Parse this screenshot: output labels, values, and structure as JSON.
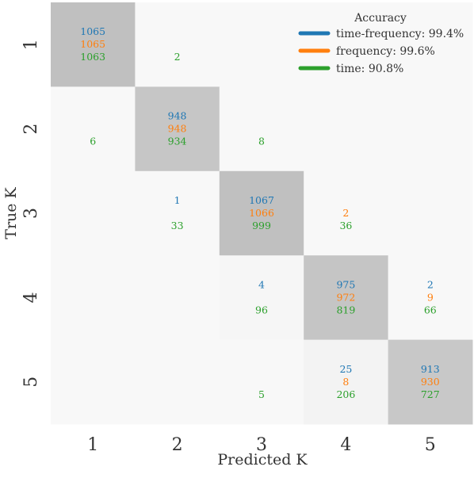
{
  "chart_data": {
    "type": "heatmap",
    "subtype": "confusion-matrix",
    "xlabel": "Predicted K",
    "ylabel": "True K",
    "x_categories": [
      "1",
      "2",
      "3",
      "4",
      "5"
    ],
    "y_categories": [
      "1",
      "2",
      "3",
      "4",
      "5"
    ],
    "series": [
      {
        "name": "time-frequency",
        "legend_label": "time-frequency: 99.4%",
        "color": "#1f77b4",
        "matrix": [
          [
            1065,
            null,
            null,
            null,
            null
          ],
          [
            null,
            948,
            null,
            null,
            null
          ],
          [
            null,
            1,
            1067,
            null,
            null
          ],
          [
            null,
            null,
            4,
            975,
            2
          ],
          [
            null,
            null,
            null,
            25,
            913
          ]
        ]
      },
      {
        "name": "frequency",
        "legend_label": "frequency: 99.6%",
        "color": "#ff7f0e",
        "matrix": [
          [
            1065,
            null,
            null,
            null,
            null
          ],
          [
            null,
            948,
            null,
            null,
            null
          ],
          [
            null,
            null,
            1066,
            2,
            null
          ],
          [
            null,
            null,
            null,
            972,
            9
          ],
          [
            null,
            null,
            null,
            8,
            930
          ]
        ]
      },
      {
        "name": "time",
        "legend_label": "time: 90.8%",
        "color": "#2ca02c",
        "matrix": [
          [
            1063,
            2,
            null,
            null,
            null
          ],
          [
            6,
            934,
            8,
            null,
            null
          ],
          [
            null,
            33,
            999,
            36,
            null
          ],
          [
            null,
            null,
            96,
            819,
            66
          ],
          [
            null,
            null,
            5,
            206,
            727
          ]
        ]
      }
    ],
    "shading": [
      [
        1065,
        0,
        0,
        0,
        0
      ],
      [
        0,
        948,
        0,
        0,
        0
      ],
      [
        0,
        0,
        1067,
        0,
        0
      ],
      [
        0,
        0,
        30,
        975,
        0
      ],
      [
        0,
        0,
        0,
        90,
        913
      ]
    ],
    "legend": {
      "title": "Accuracy",
      "placement": "top-right"
    },
    "grid": false
  }
}
